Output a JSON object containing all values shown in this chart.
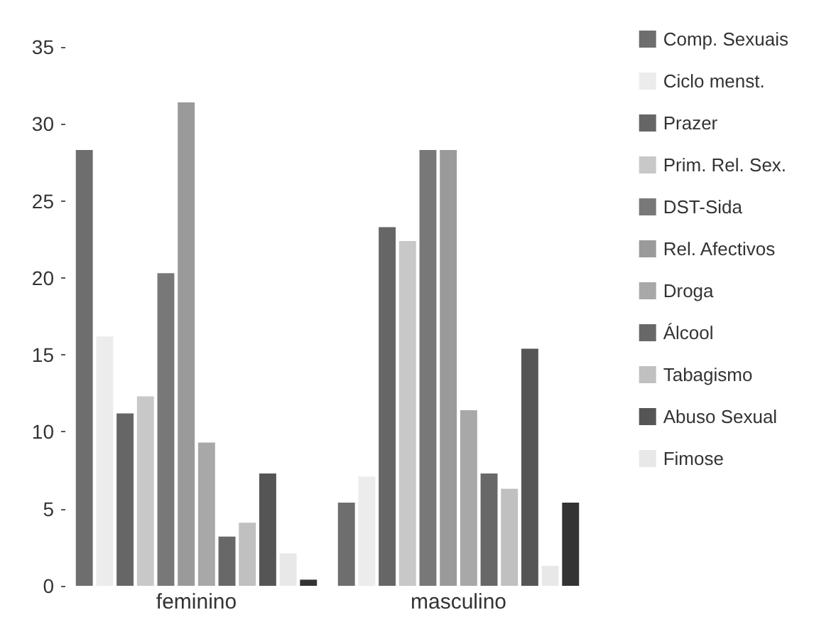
{
  "chart_data": {
    "type": "bar",
    "categories": [
      "feminino",
      "masculino"
    ],
    "series": [
      {
        "name": "Comp. Sexuais",
        "color": "#6e6e6e",
        "values": [
          28.3,
          5.4
        ]
      },
      {
        "name": "Ciclo menst.",
        "color": "#ececec",
        "values": [
          16.2,
          7.1
        ]
      },
      {
        "name": "Prazer",
        "color": "#666666",
        "values": [
          11.2,
          23.3
        ]
      },
      {
        "name": "Prim. Rel. Sex.",
        "color": "#c8c8c8",
        "values": [
          12.3,
          22.4
        ]
      },
      {
        "name": "DST-Sida",
        "color": "#787878",
        "values": [
          20.3,
          28.3
        ]
      },
      {
        "name": "Rel. Afectivos",
        "color": "#9a9a9a",
        "values": [
          31.4,
          28.3
        ]
      },
      {
        "name": "Droga",
        "color": "#a8a8a8",
        "values": [
          9.3,
          11.4
        ]
      },
      {
        "name": "Álcool",
        "color": "#686868",
        "values": [
          3.2,
          7.3
        ]
      },
      {
        "name": "Tabagismo",
        "color": "#c0c0c0",
        "values": [
          4.1,
          6.3
        ]
      },
      {
        "name": "Abuso Sexual",
        "color": "#555555",
        "values": [
          7.3,
          15.4
        ]
      },
      {
        "name": "Fimose",
        "color": "#e8e8e8",
        "values": [
          2.1,
          1.3
        ]
      },
      {
        "color": "#333333",
        "values": [
          0.4,
          5.4
        ]
      }
    ],
    "ylim": [
      0,
      35
    ],
    "yticks": [
      0,
      5,
      10,
      15,
      20,
      25,
      30,
      35
    ],
    "grid": false,
    "legend": "right"
  }
}
